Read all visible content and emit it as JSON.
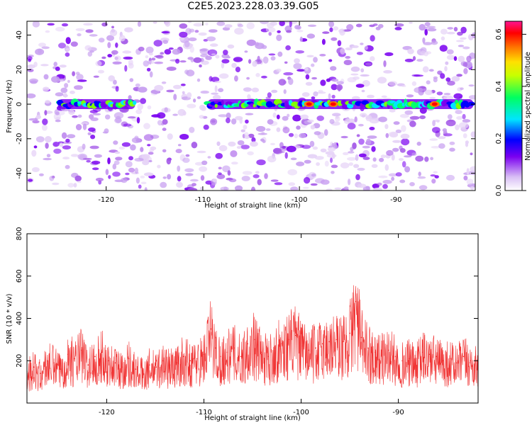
{
  "title": "C2E5.2023.228.03.39.G05",
  "colors": {
    "snr_line": "#f03030",
    "colormap": [
      "#ffffff",
      "#e6d3f7",
      "#c79ef0",
      "#a55ae8",
      "#7a00f0",
      "#0000ff",
      "#00e5ff",
      "#00ff70",
      "#80ff00",
      "#ffff00",
      "#ff8000",
      "#ff0000",
      "#ff1493"
    ]
  },
  "chart_data": [
    {
      "type": "heatmap",
      "xlabel": "Height of straight line (km)",
      "ylabel": "Frequency (Hz)",
      "xlim": [
        -128.2,
        -81.8
      ],
      "ylim": [
        -50,
        48
      ],
      "xticks": [
        -120,
        -110,
        -100,
        -90
      ],
      "yticks": [
        -40,
        -20,
        0,
        20,
        40
      ],
      "colorbar": {
        "label": "Normalized spectral amplitude",
        "range": [
          0,
          0.65
        ],
        "ticks": [
          0.0,
          0.2,
          0.4,
          0.6
        ]
      },
      "features": [
        {
          "kind": "horizontal_band",
          "frequency_hz": 0,
          "x_start": -125,
          "x_end": -117,
          "peak_amplitude": 0.35
        },
        {
          "kind": "horizontal_band",
          "frequency_hz": 0,
          "x_start": -109.5,
          "x_end": -82,
          "peak_amplitude": 0.62
        },
        {
          "kind": "peak",
          "x": -99,
          "frequency_hz": 0,
          "amplitude": 0.62
        },
        {
          "kind": "peak",
          "x": -96.5,
          "frequency_hz": 0,
          "amplitude": 0.6
        },
        {
          "kind": "peak",
          "x": -86,
          "frequency_hz": 0,
          "amplitude": 0.62
        }
      ]
    },
    {
      "type": "line",
      "xlabel": "Height of straight line (km)",
      "ylabel": "SNR (10 * v/v)",
      "xlim": [
        -128.2,
        -81.8
      ],
      "ylim": [
        0,
        800
      ],
      "xticks": [
        -120,
        -110,
        -100,
        -90
      ],
      "yticks": [
        200,
        400,
        600,
        800
      ],
      "series": [
        {
          "x": [
            -128.2,
            -127.5,
            -126.8,
            -126.1,
            -125.4,
            -124.7,
            -124,
            -123.3,
            -122.6,
            -121.9,
            -121.2,
            -120.5,
            -119.8,
            -119.1,
            -118.4,
            -117.7,
            -117,
            -116.3,
            -115.6,
            -114.9,
            -114.2,
            -113.5,
            -112.8,
            -112.1,
            -111.4,
            -110.7,
            -110,
            -109.3,
            -108.8,
            -108.3,
            -107.6,
            -106.9,
            -106.2,
            -105.5,
            -104.8,
            -104.1,
            -103.4,
            -102.7,
            -102,
            -101.3,
            -100.6,
            -99.9,
            -99.2,
            -98.5,
            -97.8,
            -97.1,
            -96.4,
            -95.7,
            -95,
            -94.4,
            -93.8,
            -93.1,
            -92.4,
            -91.7,
            -91,
            -90.3,
            -89.6,
            -88.9,
            -88.2,
            -87.5,
            -86.8,
            -86.1,
            -85.4,
            -84.7,
            -84,
            -83.3,
            -82.6,
            -81.8
          ],
          "values": [
            150,
            170,
            140,
            200,
            190,
            160,
            230,
            210,
            250,
            180,
            220,
            240,
            200,
            190,
            170,
            210,
            160,
            150,
            180,
            170,
            200,
            180,
            190,
            220,
            200,
            210,
            230,
            350,
            260,
            220,
            240,
            260,
            220,
            280,
            300,
            240,
            220,
            260,
            280,
            300,
            320,
            270,
            250,
            260,
            280,
            290,
            300,
            290,
            330,
            480,
            310,
            260,
            240,
            230,
            250,
            220,
            200,
            210,
            190,
            240,
            230,
            220,
            200,
            210,
            190,
            220,
            200,
            180
          ]
        }
      ]
    }
  ]
}
